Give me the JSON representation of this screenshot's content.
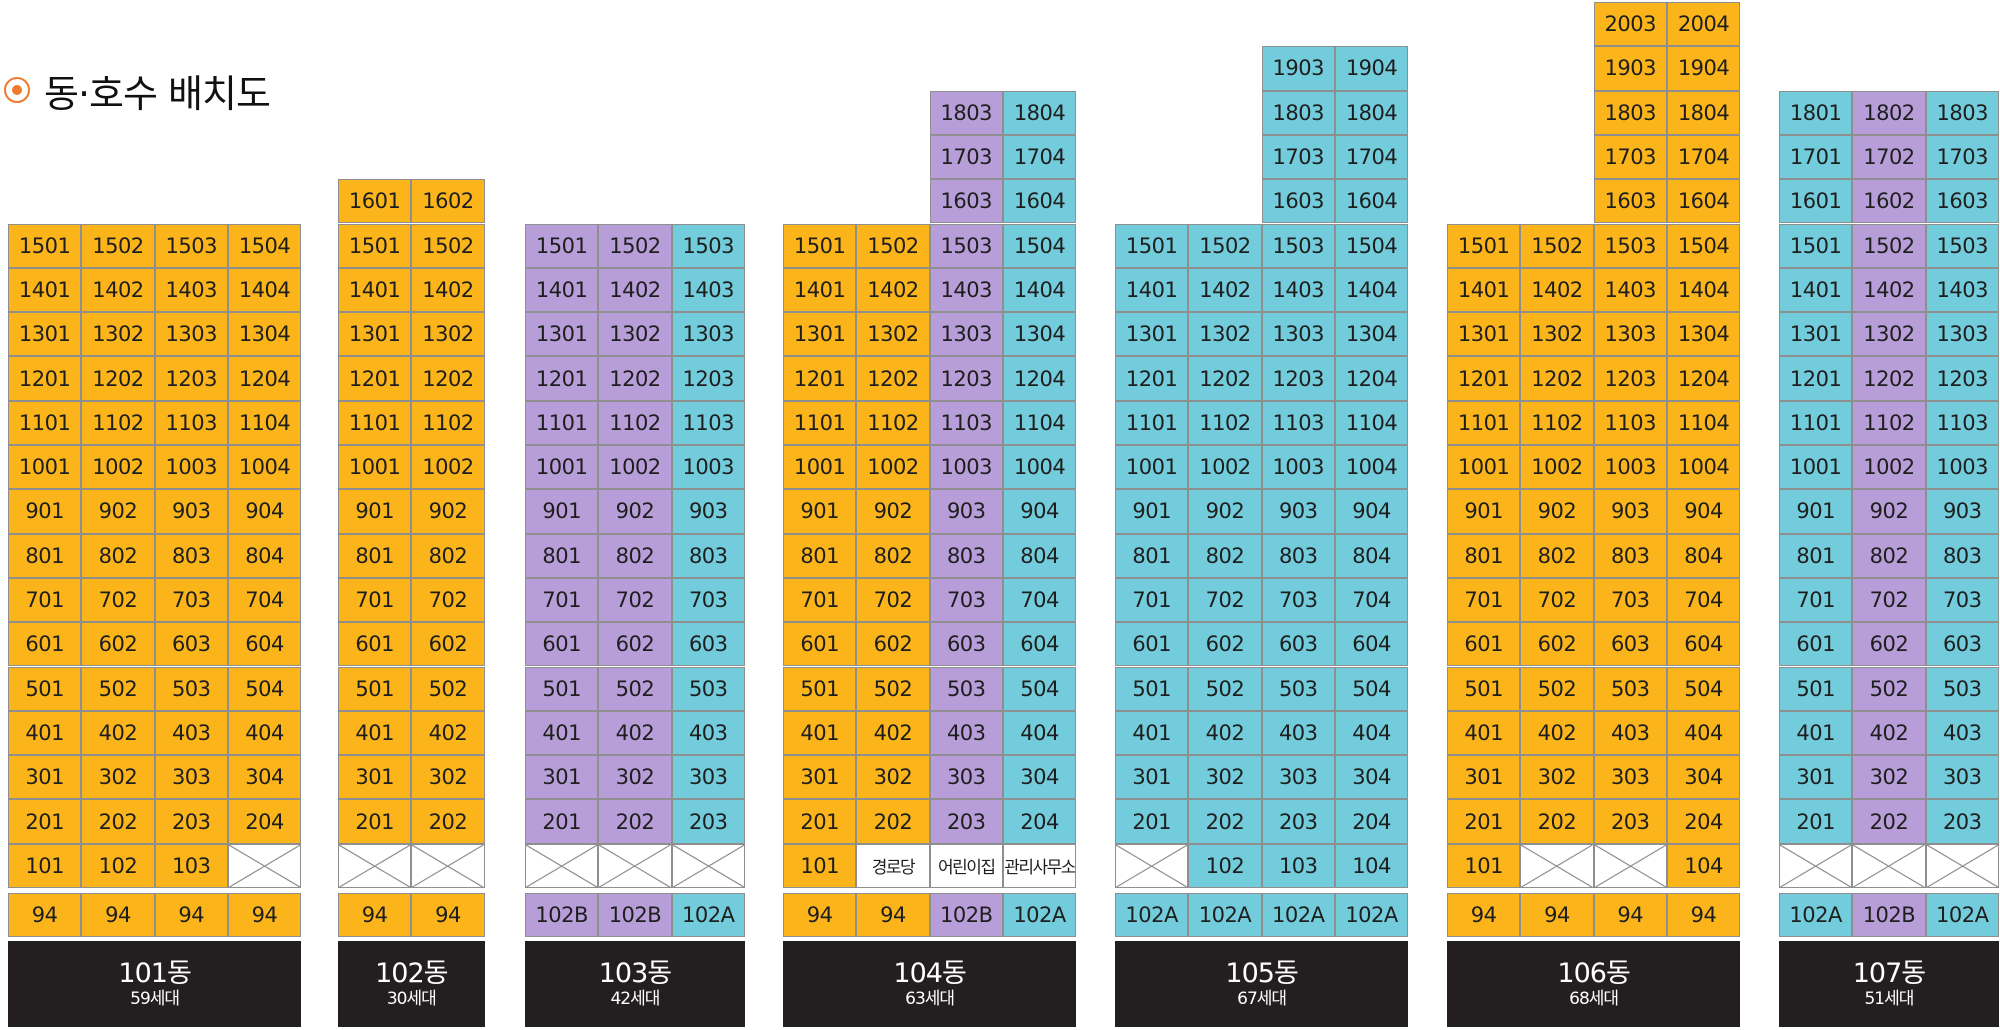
{
  "title": "동·호수 배치도",
  "colors": {
    "yellow": "#fbb51b",
    "purple": "#b79ed8",
    "teal": "#72ccdb"
  },
  "buildings": [
    {
      "name": "101동",
      "count": "59세대",
      "columns": [
        {
          "color": "yellow",
          "top_floor": 15,
          "suffix": "01",
          "ground": "101",
          "type": "94"
        },
        {
          "color": "yellow",
          "top_floor": 15,
          "suffix": "02",
          "ground": "102",
          "type": "94"
        },
        {
          "color": "yellow",
          "top_floor": 15,
          "suffix": "03",
          "ground": "103",
          "type": "94"
        },
        {
          "color": "yellow",
          "top_floor": 15,
          "suffix": "04",
          "ground": null,
          "type": "94"
        }
      ]
    },
    {
      "name": "102동",
      "count": "30세대",
      "columns": [
        {
          "color": "yellow",
          "top_floor": 16,
          "suffix": "01",
          "ground": null,
          "type": "94"
        },
        {
          "color": "yellow",
          "top_floor": 16,
          "suffix": "02",
          "ground": null,
          "type": "94"
        }
      ]
    },
    {
      "name": "103동",
      "count": "42세대",
      "columns": [
        {
          "color": "purple",
          "top_floor": 15,
          "suffix": "01",
          "ground": null,
          "type": "102B"
        },
        {
          "color": "purple",
          "top_floor": 15,
          "suffix": "02",
          "ground": null,
          "type": "102B"
        },
        {
          "color": "teal",
          "top_floor": 15,
          "suffix": "03",
          "ground": null,
          "type": "102A"
        }
      ]
    },
    {
      "name": "104동",
      "count": "63세대",
      "columns": [
        {
          "color": "yellow",
          "top_floor": 15,
          "suffix": "01",
          "ground": "101",
          "type": "94"
        },
        {
          "color": "yellow",
          "top_floor": 15,
          "suffix": "02",
          "ground": "경로당",
          "ground_facility": true,
          "type": "94"
        },
        {
          "color": "purple",
          "top_floor": 18,
          "suffix": "03",
          "ground": "어린이집",
          "ground_facility": true,
          "type": "102B"
        },
        {
          "color": "teal",
          "top_floor": 18,
          "suffix": "04",
          "ground": "관리사무소",
          "ground_facility": true,
          "type": "102A"
        }
      ]
    },
    {
      "name": "105동",
      "count": "67세대",
      "columns": [
        {
          "color": "teal",
          "top_floor": 15,
          "suffix": "01",
          "ground": null,
          "type": "102A"
        },
        {
          "color": "teal",
          "top_floor": 15,
          "suffix": "02",
          "ground": "102",
          "type": "102A"
        },
        {
          "color": "teal",
          "top_floor": 19,
          "suffix": "03",
          "ground": "103",
          "type": "102A"
        },
        {
          "color": "teal",
          "top_floor": 19,
          "suffix": "04",
          "ground": "104",
          "type": "102A"
        }
      ]
    },
    {
      "name": "106동",
      "count": "68세대",
      "columns": [
        {
          "color": "yellow",
          "top_floor": 15,
          "suffix": "01",
          "ground": "101",
          "type": "94"
        },
        {
          "color": "yellow",
          "top_floor": 15,
          "suffix": "02",
          "ground": null,
          "type": "94"
        },
        {
          "color": "yellow",
          "top_floor": 20,
          "suffix": "03",
          "ground": null,
          "type": "94"
        },
        {
          "color": "yellow",
          "top_floor": 20,
          "suffix": "04",
          "ground": "104",
          "type": "94"
        }
      ]
    },
    {
      "name": "107동",
      "count": "51세대",
      "columns": [
        {
          "color": "teal",
          "top_floor": 18,
          "suffix": "01",
          "ground": null,
          "type": "102A"
        },
        {
          "color": "purple",
          "top_floor": 18,
          "suffix": "02",
          "ground": null,
          "type": "102B"
        },
        {
          "color": "teal",
          "top_floor": 18,
          "suffix": "03",
          "ground": null,
          "type": "102A"
        }
      ]
    }
  ]
}
